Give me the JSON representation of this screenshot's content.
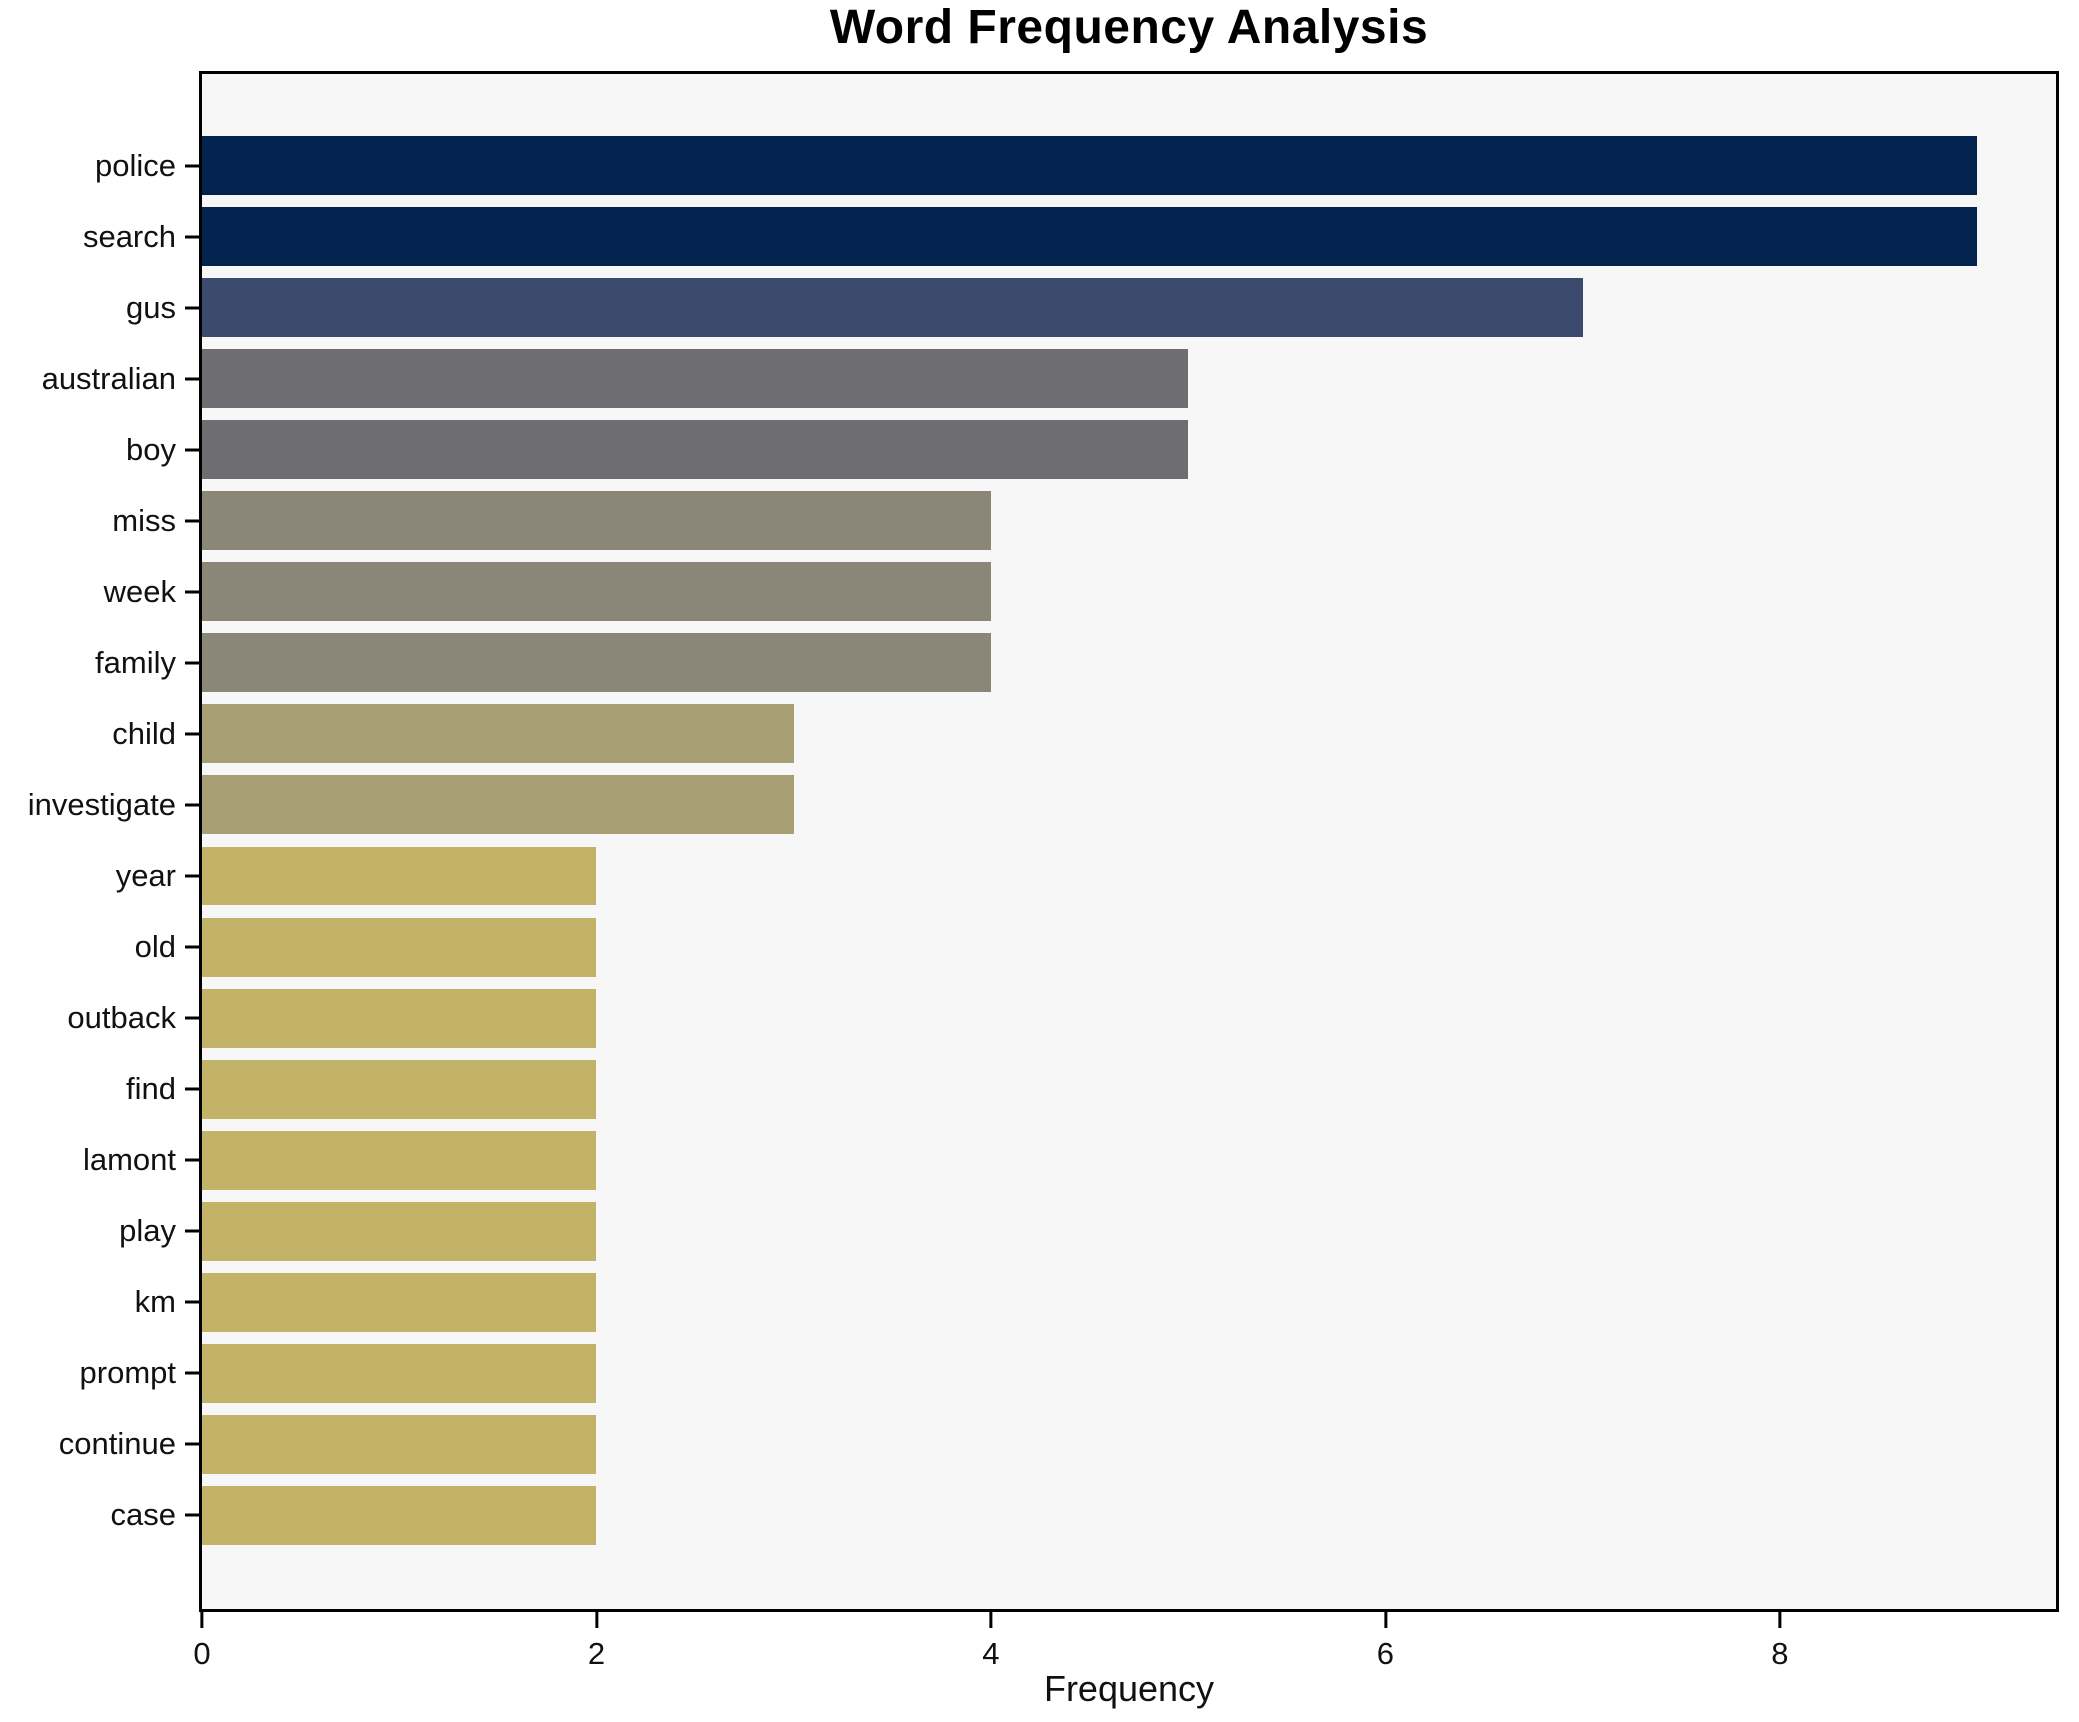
{
  "chart_data": {
    "type": "bar",
    "orientation": "horizontal",
    "title": "Word Frequency Analysis",
    "xlabel": "Frequency",
    "ylabel": "",
    "categories": [
      "police",
      "search",
      "gus",
      "australian",
      "boy",
      "miss",
      "week",
      "family",
      "child",
      "investigate",
      "year",
      "old",
      "outback",
      "find",
      "lamont",
      "play",
      "km",
      "prompt",
      "continue",
      "case"
    ],
    "values": [
      9,
      9,
      7,
      5,
      5,
      4,
      4,
      4,
      3,
      3,
      2,
      2,
      2,
      2,
      2,
      2,
      2,
      2,
      2,
      2
    ],
    "xlim": [
      0,
      9.4
    ],
    "xticks": [
      0,
      2,
      4,
      6,
      8
    ],
    "grid": false,
    "legend": null,
    "bar_colors": [
      "#01234e",
      "#01234e",
      "#3c4b6d",
      "#6e6e72",
      "#6e6e72",
      "#8a8779",
      "#8a8779",
      "#8a8779",
      "#a79e73",
      "#a79e73",
      "#c3b369",
      "#c3b369",
      "#c3b369",
      "#c3b369",
      "#c3b369",
      "#c3b369",
      "#c3b369",
      "#c3b369",
      "#c3b369",
      "#c3b369"
    ],
    "plot_background": "#f7f7f7",
    "figure_background": "#ffffff",
    "spine_color": "#000000"
  }
}
